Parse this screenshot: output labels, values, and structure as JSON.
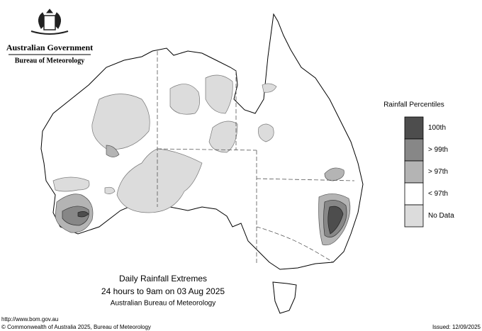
{
  "header": {
    "government": "Australian Government",
    "agency": "Bureau of Meteorology"
  },
  "legend": {
    "title": "Rainfall Percentiles",
    "items": [
      {
        "label": "100th",
        "color": "#4d4d4d"
      },
      {
        "label": "> 99th",
        "color": "#878787"
      },
      {
        "label": "> 97th",
        "color": "#b4b4b4"
      },
      {
        "label": "< 97th",
        "color": "#ffffff"
      },
      {
        "label": "No Data",
        "color": "#dcdcdc"
      }
    ]
  },
  "map_title": {
    "title": "Daily Rainfall Extremes",
    "period": "24 hours to 9am on 03 Aug 2025",
    "source": "Australian Bureau of Meteorology"
  },
  "footer": {
    "url": "http://www.bom.gov.au",
    "copyright": "© Commonwealth of Australia 2025, Bureau of Meteorology",
    "issued": "Issued: 12/09/2025"
  }
}
